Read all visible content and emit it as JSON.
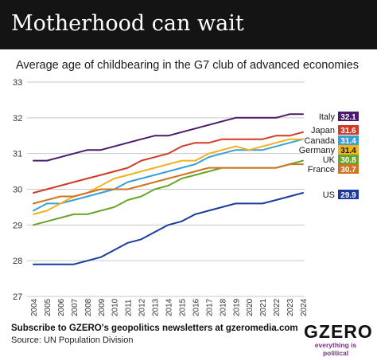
{
  "header": {
    "title": "Motherhood can wait",
    "subtitle": "Average age of childbearing in the G7 club of advanced economies"
  },
  "footer": {
    "subscribe": "Subscribe to GZERO's geopolitics newsletters at gzeromedia.com",
    "source": "Source: UN Population Division"
  },
  "logo": {
    "word": "GZERO",
    "tagline": "everything is political"
  },
  "chart_data": {
    "type": "line",
    "x": [
      "2004",
      "2005",
      "2006",
      "2007",
      "2008",
      "2009",
      "2010",
      "2011",
      "2012",
      "2013",
      "2014",
      "2015",
      "2016",
      "2017",
      "2018",
      "2019",
      "2020",
      "2021",
      "2022",
      "2023",
      "2024"
    ],
    "ylim": [
      27,
      33
    ],
    "yticks": [
      27,
      28,
      29,
      30,
      31,
      32,
      33
    ],
    "grid": true,
    "series": [
      {
        "name": "Italy",
        "color": "#4b1a6b",
        "label_value": "32.1",
        "values": [
          30.8,
          30.8,
          30.9,
          31.0,
          31.1,
          31.1,
          31.2,
          31.3,
          31.4,
          31.5,
          31.5,
          31.6,
          31.7,
          31.8,
          31.9,
          32.0,
          32.0,
          32.0,
          32.0,
          32.1,
          32.1
        ]
      },
      {
        "name": "Japan",
        "color": "#d13a25",
        "label_value": "31.6",
        "values": [
          29.9,
          30.0,
          30.1,
          30.2,
          30.3,
          30.4,
          30.5,
          30.6,
          30.8,
          30.9,
          31.0,
          31.2,
          31.3,
          31.3,
          31.4,
          31.4,
          31.4,
          31.4,
          31.5,
          31.5,
          31.6
        ]
      },
      {
        "name": "Canada",
        "color": "#3a9fd6",
        "label_value": "31.4",
        "values": [
          29.4,
          29.6,
          29.6,
          29.7,
          29.8,
          29.9,
          30.0,
          30.2,
          30.3,
          30.4,
          30.5,
          30.6,
          30.7,
          30.9,
          31.0,
          31.1,
          31.1,
          31.1,
          31.2,
          31.3,
          31.4
        ]
      },
      {
        "name": "Germany",
        "color": "#f2b21c",
        "label_value": "31.4",
        "values": [
          29.3,
          29.4,
          29.6,
          29.8,
          29.9,
          30.1,
          30.3,
          30.4,
          30.5,
          30.6,
          30.7,
          30.8,
          30.8,
          31.0,
          31.1,
          31.2,
          31.1,
          31.2,
          31.3,
          31.4,
          31.4
        ]
      },
      {
        "name": "UK",
        "color": "#67a628",
        "label_value": "30.8",
        "values": [
          29.0,
          29.1,
          29.2,
          29.3,
          29.3,
          29.4,
          29.5,
          29.7,
          29.8,
          30.0,
          30.1,
          30.3,
          30.4,
          30.5,
          30.6,
          30.6,
          30.6,
          30.6,
          30.6,
          30.7,
          30.8
        ]
      },
      {
        "name": "France",
        "color": "#d1731f",
        "label_value": "30.7",
        "values": [
          29.6,
          29.7,
          29.8,
          29.8,
          29.9,
          30.0,
          30.0,
          30.0,
          30.1,
          30.2,
          30.3,
          30.4,
          30.5,
          30.6,
          30.6,
          30.6,
          30.6,
          30.6,
          30.6,
          30.7,
          30.7
        ]
      },
      {
        "name": "US",
        "color": "#1c3a9e",
        "label_value": "29.9",
        "values": [
          27.9,
          27.9,
          27.9,
          27.9,
          28.0,
          28.1,
          28.3,
          28.5,
          28.6,
          28.8,
          29.0,
          29.1,
          29.3,
          29.4,
          29.5,
          29.6,
          29.6,
          29.6,
          29.7,
          29.8,
          29.9
        ]
      }
    ]
  }
}
